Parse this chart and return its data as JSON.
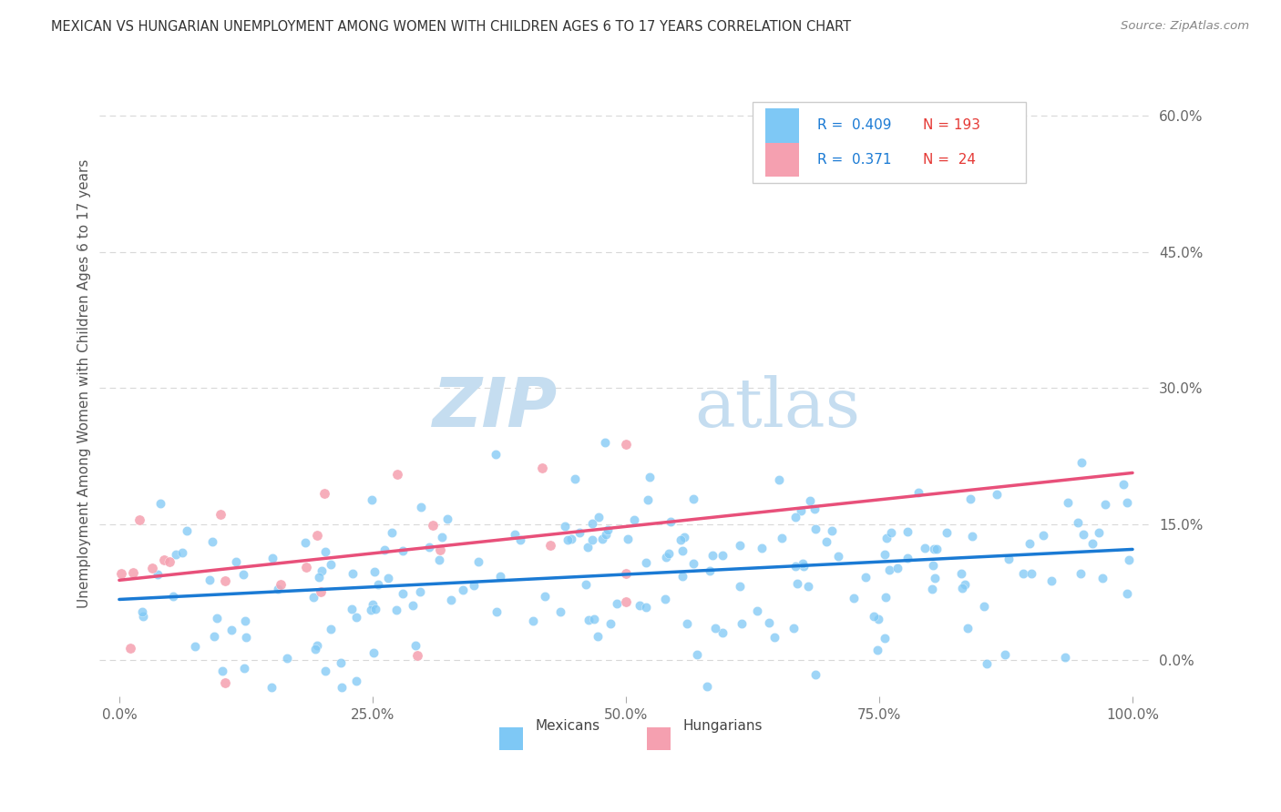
{
  "title": "MEXICAN VS HUNGARIAN UNEMPLOYMENT AMONG WOMEN WITH CHILDREN AGES 6 TO 17 YEARS CORRELATION CHART",
  "source": "Source: ZipAtlas.com",
  "ylabel": "Unemployment Among Women with Children Ages 6 to 17 years",
  "xlim": [
    -0.02,
    1.02
  ],
  "ylim": [
    -0.04,
    0.65
  ],
  "xticks": [
    0.0,
    0.25,
    0.5,
    0.75,
    1.0
  ],
  "xtick_labels": [
    "0.0%",
    "25.0%",
    "50.0%",
    "75.0%",
    "100.0%"
  ],
  "ytick_labels_right": [
    "60.0%",
    "45.0%",
    "30.0%",
    "15.0%",
    "0.0%"
  ],
  "yticks_right": [
    0.6,
    0.45,
    0.3,
    0.15,
    0.0
  ],
  "mexican_color": "#7ec8f5",
  "hungarian_color": "#f5a0b0",
  "mexican_line_color": "#1a7ad4",
  "hungarian_line_color": "#e8507a",
  "mexican_R": 0.409,
  "mexican_N": 193,
  "hungarian_R": 0.371,
  "hungarian_N": 24,
  "watermark_zip": "ZIP",
  "watermark_atlas": "atlas",
  "background_color": "#ffffff",
  "grid_color": "#d8d8d8",
  "legend_R_color": "#1a7ad4",
  "legend_N_color": "#e53935",
  "mexican_scatter_seed": 12,
  "hungarian_scatter_seed": 99
}
